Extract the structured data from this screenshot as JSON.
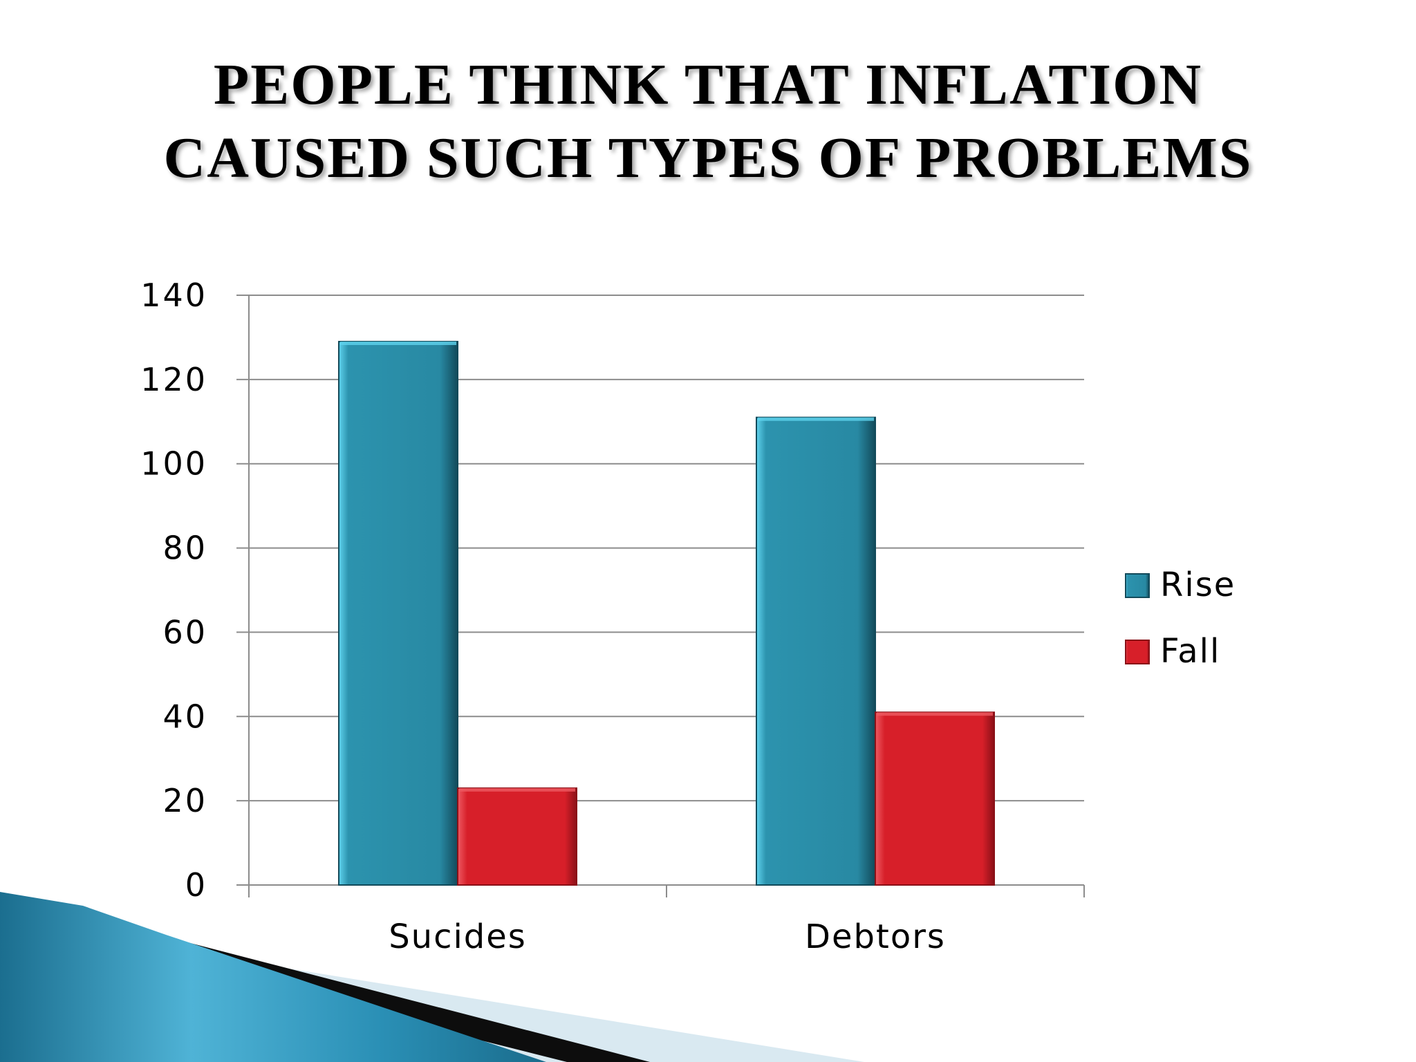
{
  "slide": {
    "title_line_1": "PEOPLE THINK THAT  INFLATION",
    "title_line_2": "CAUSED SUCH TYPES OF PROBLEMS"
  },
  "colors": {
    "rise": "#2889a3",
    "rise_light": "#5fd3ee",
    "rise_dark": "#124a5a",
    "fall": "#d71f29",
    "fall_light": "#ee5a62",
    "fall_dark": "#8a1017",
    "gridline": "#8c8c8c",
    "deco_blue": "#1f7fa3",
    "deco_light": "#d7e8f0"
  },
  "chart_data": {
    "type": "bar",
    "categories": [
      "Sucides",
      "Debtors"
    ],
    "series": [
      {
        "name": "Rise",
        "values": [
          129,
          111
        ]
      },
      {
        "name": "Fall",
        "values": [
          23,
          41
        ]
      }
    ],
    "ylim": [
      0,
      140
    ],
    "yticks": [
      "0",
      "20",
      "40",
      "60",
      "80",
      "100",
      "120",
      "140"
    ],
    "grid": true,
    "legend_position": "right"
  }
}
